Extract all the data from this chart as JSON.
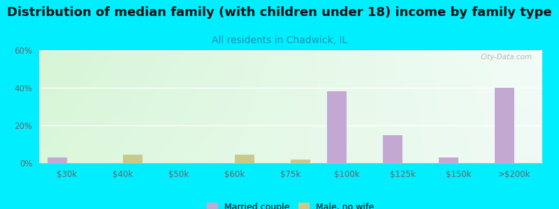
{
  "title": "Distribution of median family (with children under 18) income by family type",
  "subtitle": "All residents in Chadwick, IL",
  "categories": [
    "$30k",
    "$40k",
    "$50k",
    "$60k",
    "$75k",
    "$100k",
    "$125k",
    "$150k",
    ">$200k"
  ],
  "married_couple": [
    3.0,
    0.0,
    0.0,
    0.0,
    0.0,
    38.0,
    15.0,
    3.0,
    40.0
  ],
  "male_no_wife": [
    0.0,
    4.5,
    0.0,
    4.5,
    2.0,
    0.0,
    0.0,
    0.0,
    0.0
  ],
  "married_color": "#c4a8d4",
  "male_color": "#c8ca8c",
  "bg_outer": "#00eeff",
  "ylim": [
    0,
    60
  ],
  "yticks": [
    0,
    20,
    40,
    60
  ],
  "ytick_labels": [
    "0%",
    "20%",
    "40%",
    "60%"
  ],
  "bar_width": 0.35,
  "title_fontsize": 13,
  "subtitle_fontsize": 10,
  "subtitle_color": "#2090b0",
  "watermark": "City-Data.com",
  "tick_color": "#666666",
  "tick_fontsize": 8.5
}
